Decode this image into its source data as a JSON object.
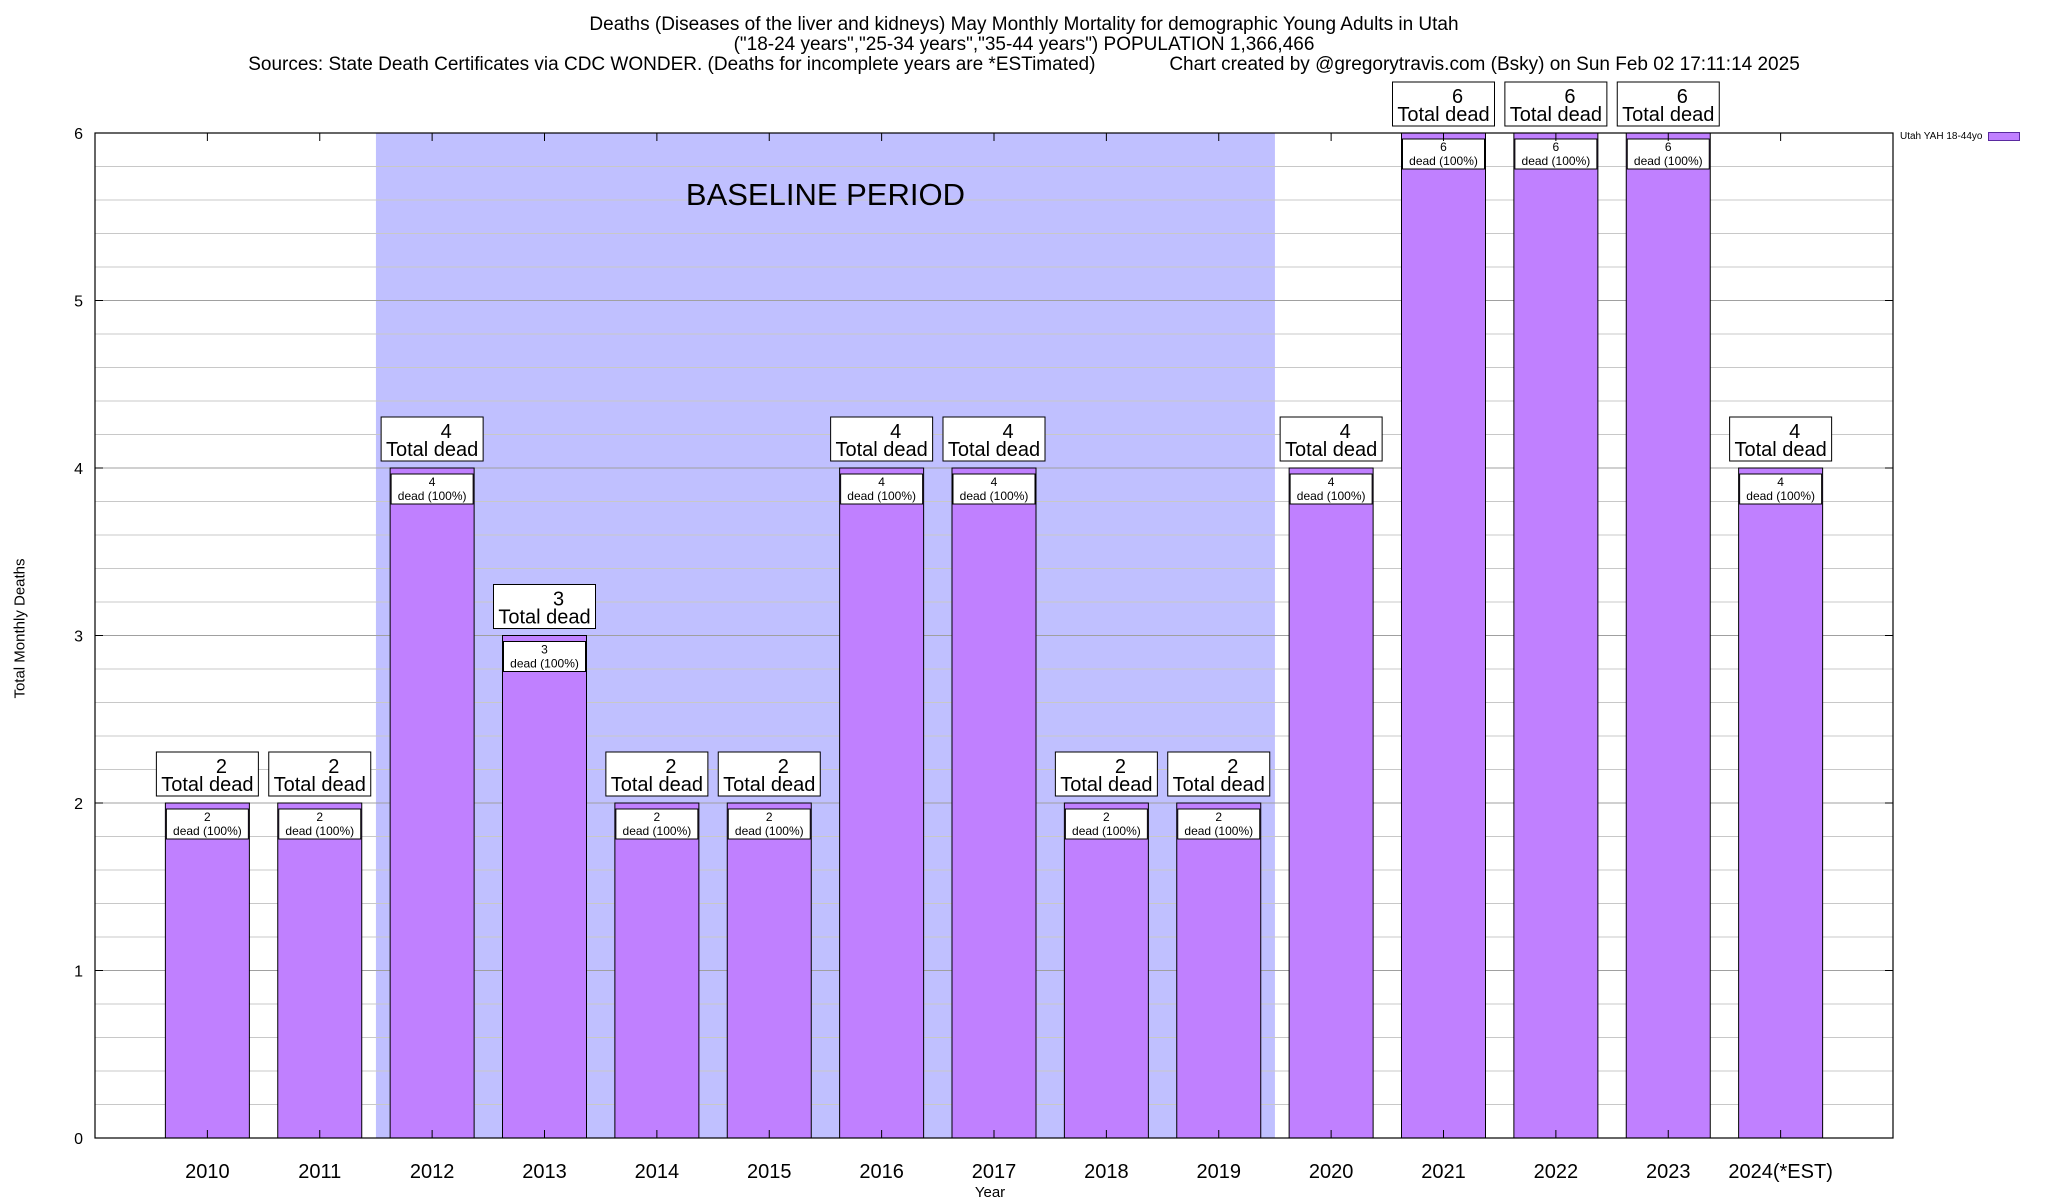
{
  "chart_data": {
    "type": "bar",
    "title_lines": [
      "Deaths (Diseases of the liver and kidneys) May Monthly Mortality for demographic Young Adults in Utah",
      "(\"18-24 years\",\"25-34 years\",\"35-44 years\") POPULATION 1,366,466",
      "Sources: State Death Certificates via CDC WONDER. (Deaths for incomplete years are *ESTimated)              Chart created by @gregorytravis.com (Bsky) on Sun Feb 02 17:11:14 2025"
    ],
    "xlabel": "Year",
    "ylabel": "Total Monthly Deaths",
    "ylim": [
      0,
      6
    ],
    "yticks": [
      0,
      1,
      2,
      3,
      4,
      5,
      6
    ],
    "categories": [
      "2010",
      "2011",
      "2012",
      "2013",
      "2014",
      "2015",
      "2016",
      "2017",
      "2018",
      "2019",
      "2020",
      "2021",
      "2022",
      "2023",
      "2024(*EST)"
    ],
    "series": [
      {
        "name": "Utah YAH 18-44yo",
        "values": [
          2,
          2,
          4,
          3,
          2,
          2,
          4,
          4,
          2,
          2,
          4,
          6,
          6,
          6,
          4
        ],
        "color": "#c080ff"
      }
    ],
    "total_label": "Total dead",
    "inner_label": "dead (100%)",
    "baseline": {
      "label": "BASELINE PERIOD",
      "start": "2012",
      "end": "2019",
      "color": "#c0c0ff"
    }
  }
}
